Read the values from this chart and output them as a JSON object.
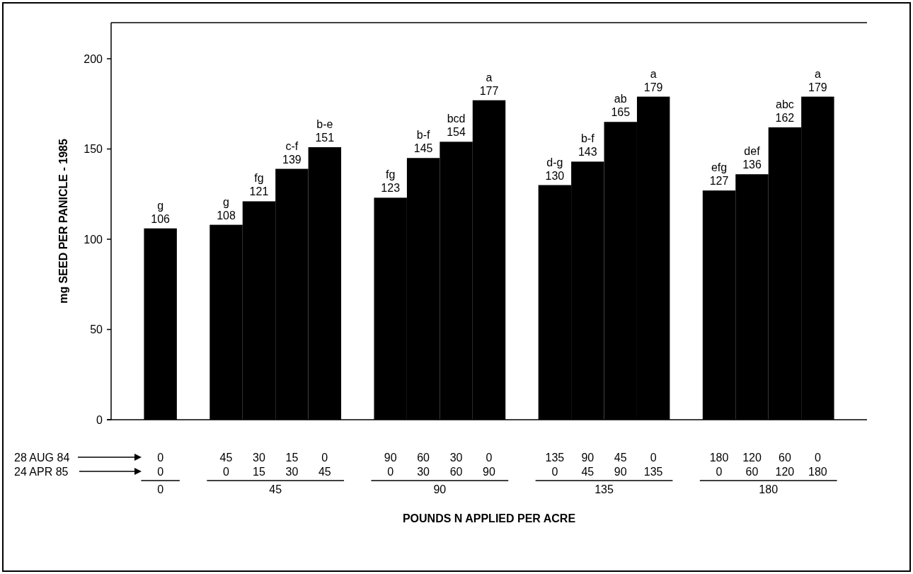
{
  "chart_data": {
    "type": "bar",
    "ylabel": "mg SEED PER PANICLE - 1985",
    "xlabel": "POUNDS N APPLIED PER ACRE",
    "categories": [
      "0\n0",
      null,
      "45\n0",
      "30\n15",
      "15\n30",
      "0\n45",
      null,
      "90\n0",
      "60\n30",
      "30\n60",
      "0\n90",
      null,
      "135\n0",
      "90\n45",
      "45\n90",
      "0\n135",
      null,
      "180\n0",
      "120\n60",
      "60\n120",
      "0\n180"
    ],
    "values": [
      106,
      null,
      108,
      121,
      139,
      151,
      null,
      123,
      145,
      154,
      177,
      null,
      130,
      143,
      165,
      179,
      null,
      127,
      136,
      162,
      179
    ],
    "value_labels": [
      "g\n106",
      null,
      "g\n108",
      "fg\n121",
      "c-f\n139",
      "b-e\n151",
      null,
      "fg\n123",
      "b-f\n145",
      "bcd\n154",
      "a\n177",
      null,
      "d-g\n130",
      "b-f\n143",
      "ab\n165",
      "a\n179",
      null,
      "efg\n127",
      "def\n136",
      "abc\n162",
      "a\n179"
    ],
    "color": "#000000",
    "annotations": [
      "28 AUG 84",
      "24 APR 85",
      "0",
      "45",
      "90",
      "135",
      "180"
    ],
    "ylim": [
      0,
      220
    ],
    "yticks": [
      0,
      50,
      100,
      150,
      200
    ],
    "grid": false
  }
}
